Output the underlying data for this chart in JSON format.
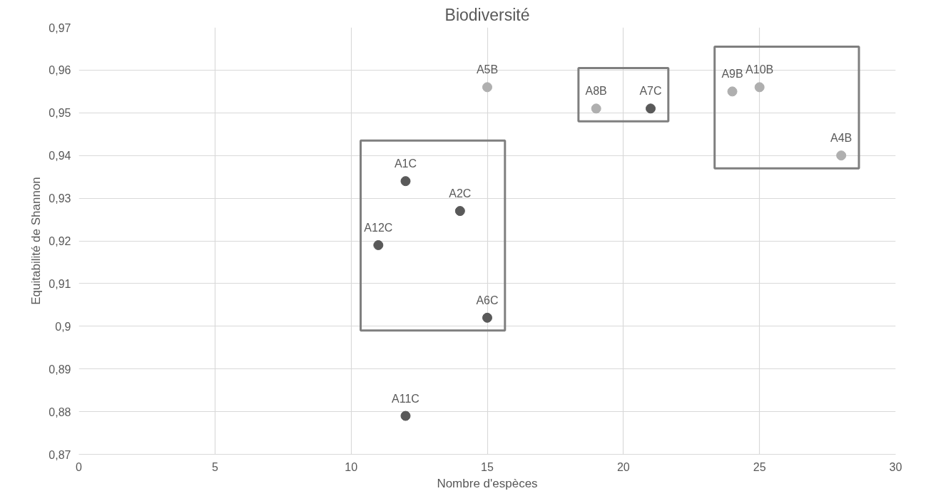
{
  "chart_data": {
    "type": "scatter",
    "title": "Biodiversité",
    "xlabel": "Nombre d'espèces",
    "ylabel": "Equitabilité de Shannon",
    "series": [
      {
        "color": "#595959",
        "x": [
          12,
          14,
          11,
          15,
          12,
          21
        ],
        "values": [
          0.934,
          0.927,
          0.919,
          0.902,
          0.879,
          0.951
        ]
      },
      {
        "color": "#afafaf",
        "x": [
          15,
          19,
          24,
          25,
          28
        ],
        "values": [
          0.956,
          0.951,
          0.955,
          0.956,
          0.94
        ]
      }
    ],
    "annotations": [
      {
        "text": "A1C",
        "x": 12,
        "y": 0.934
      },
      {
        "text": "A2C",
        "x": 14,
        "y": 0.927
      },
      {
        "text": "A12C",
        "x": 11,
        "y": 0.919
      },
      {
        "text": "A6C",
        "x": 15,
        "y": 0.902
      },
      {
        "text": "A11C",
        "x": 12,
        "y": 0.879
      },
      {
        "text": "A7C",
        "x": 21,
        "y": 0.951
      },
      {
        "text": "A5B",
        "x": 15,
        "y": 0.956
      },
      {
        "text": "A8B",
        "x": 19,
        "y": 0.951
      },
      {
        "text": "A9B",
        "x": 24,
        "y": 0.955
      },
      {
        "text": "A10B",
        "x": 25,
        "y": 0.956
      },
      {
        "text": "A4B",
        "x": 28,
        "y": 0.94
      }
    ],
    "xlim": [
      0,
      30
    ],
    "xticks": [
      0,
      5,
      10,
      15,
      20,
      25,
      30
    ],
    "ylim": [
      0.87,
      0.97
    ],
    "yticks": [
      {
        "value": 0.87,
        "label": "0,87"
      },
      {
        "value": 0.88,
        "label": "0,88"
      },
      {
        "value": 0.89,
        "label": "0,89"
      },
      {
        "value": 0.9,
        "label": "0,9"
      },
      {
        "value": 0.91,
        "label": "0,91"
      },
      {
        "value": 0.92,
        "label": "0,92"
      },
      {
        "value": 0.93,
        "label": "0,93"
      },
      {
        "value": 0.94,
        "label": "0,94"
      },
      {
        "value": 0.95,
        "label": "0,95"
      },
      {
        "value": 0.96,
        "label": "0,96"
      },
      {
        "value": 0.97,
        "label": "0,97"
      }
    ],
    "grid": true,
    "marker": "circle"
  }
}
